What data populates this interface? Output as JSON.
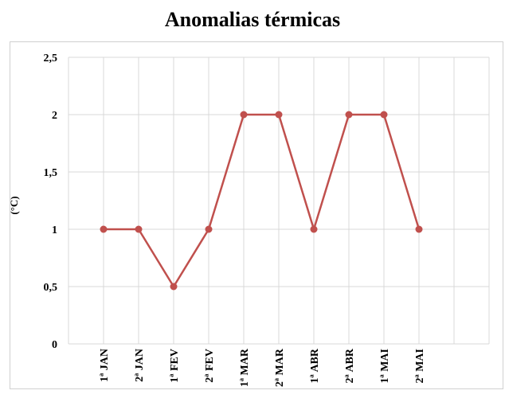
{
  "chart_data": {
    "type": "line",
    "title": "Anomalias térmicas",
    "xlabel": "",
    "ylabel": "(°C)",
    "categories": [
      "1ª JAN",
      "2ª JAN",
      "1ª FEV",
      "2ª FEV",
      "1ª MAR",
      "2ª MAR",
      "1ª ABR",
      "2ª ABR",
      "1ª MAI",
      "2ª MAI"
    ],
    "values": [
      1,
      1,
      0.5,
      1,
      2,
      2,
      1,
      2,
      2,
      1
    ],
    "ylim": [
      0,
      2.5
    ],
    "yticks": [
      0,
      0.5,
      1,
      1.5,
      2,
      2.5
    ],
    "ytick_labels": [
      "0",
      "0,5",
      "1",
      "1,5",
      "2",
      "2,5"
    ],
    "grid": true,
    "color": "#c0504d",
    "gridline_color": "#d9d9d9"
  }
}
